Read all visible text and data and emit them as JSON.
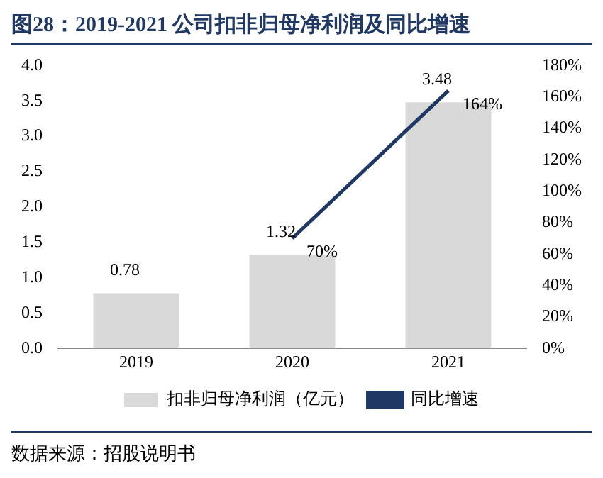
{
  "chart_data": {
    "type": "bar",
    "title": "图28：2019-2021 公司扣非归母净利润及同比增速",
    "categories": [
      "2019",
      "2020",
      "2021"
    ],
    "series": [
      {
        "name": "扣非归母净利润（亿元）",
        "color": "#d9d9d9",
        "values": [
          0.78,
          1.32,
          3.48
        ],
        "value_labels": [
          "0.78",
          "1.32",
          "3.48"
        ]
      },
      {
        "name": "同比增速",
        "type": "line",
        "axis": "y2",
        "color": "#1f3864",
        "values": [
          null,
          70,
          164
        ],
        "value_labels": [
          null,
          "70%",
          "164%"
        ]
      }
    ],
    "ylim": [
      0,
      4
    ],
    "yticks": [
      {
        "value": 0,
        "label": "0.0"
      },
      {
        "value": 0.5,
        "label": "0.5"
      },
      {
        "value": 1,
        "label": "1.0"
      },
      {
        "value": 1.5,
        "label": "1.5"
      },
      {
        "value": 2,
        "label": "2.0"
      },
      {
        "value": 2.5,
        "label": "2.5"
      },
      {
        "value": 3,
        "label": "3.0"
      },
      {
        "value": 3.5,
        "label": "3.5"
      },
      {
        "value": 4,
        "label": "4.0"
      }
    ],
    "y2lim": [
      0,
      180
    ],
    "y2ticks": [
      {
        "value": 0,
        "label": "0%"
      },
      {
        "value": 20,
        "label": "20%"
      },
      {
        "value": 40,
        "label": "40%"
      },
      {
        "value": 60,
        "label": "60%"
      },
      {
        "value": 80,
        "label": "80%"
      },
      {
        "value": 100,
        "label": "100%"
      },
      {
        "value": 120,
        "label": "120%"
      },
      {
        "value": 140,
        "label": "140%"
      },
      {
        "value": 160,
        "label": "160%"
      },
      {
        "value": 180,
        "label": "180%"
      }
    ],
    "grid": false,
    "legend": "bottom",
    "marker": "none",
    "line_style": "solid",
    "annotations": [
      "数据来源：招股说明书"
    ]
  }
}
